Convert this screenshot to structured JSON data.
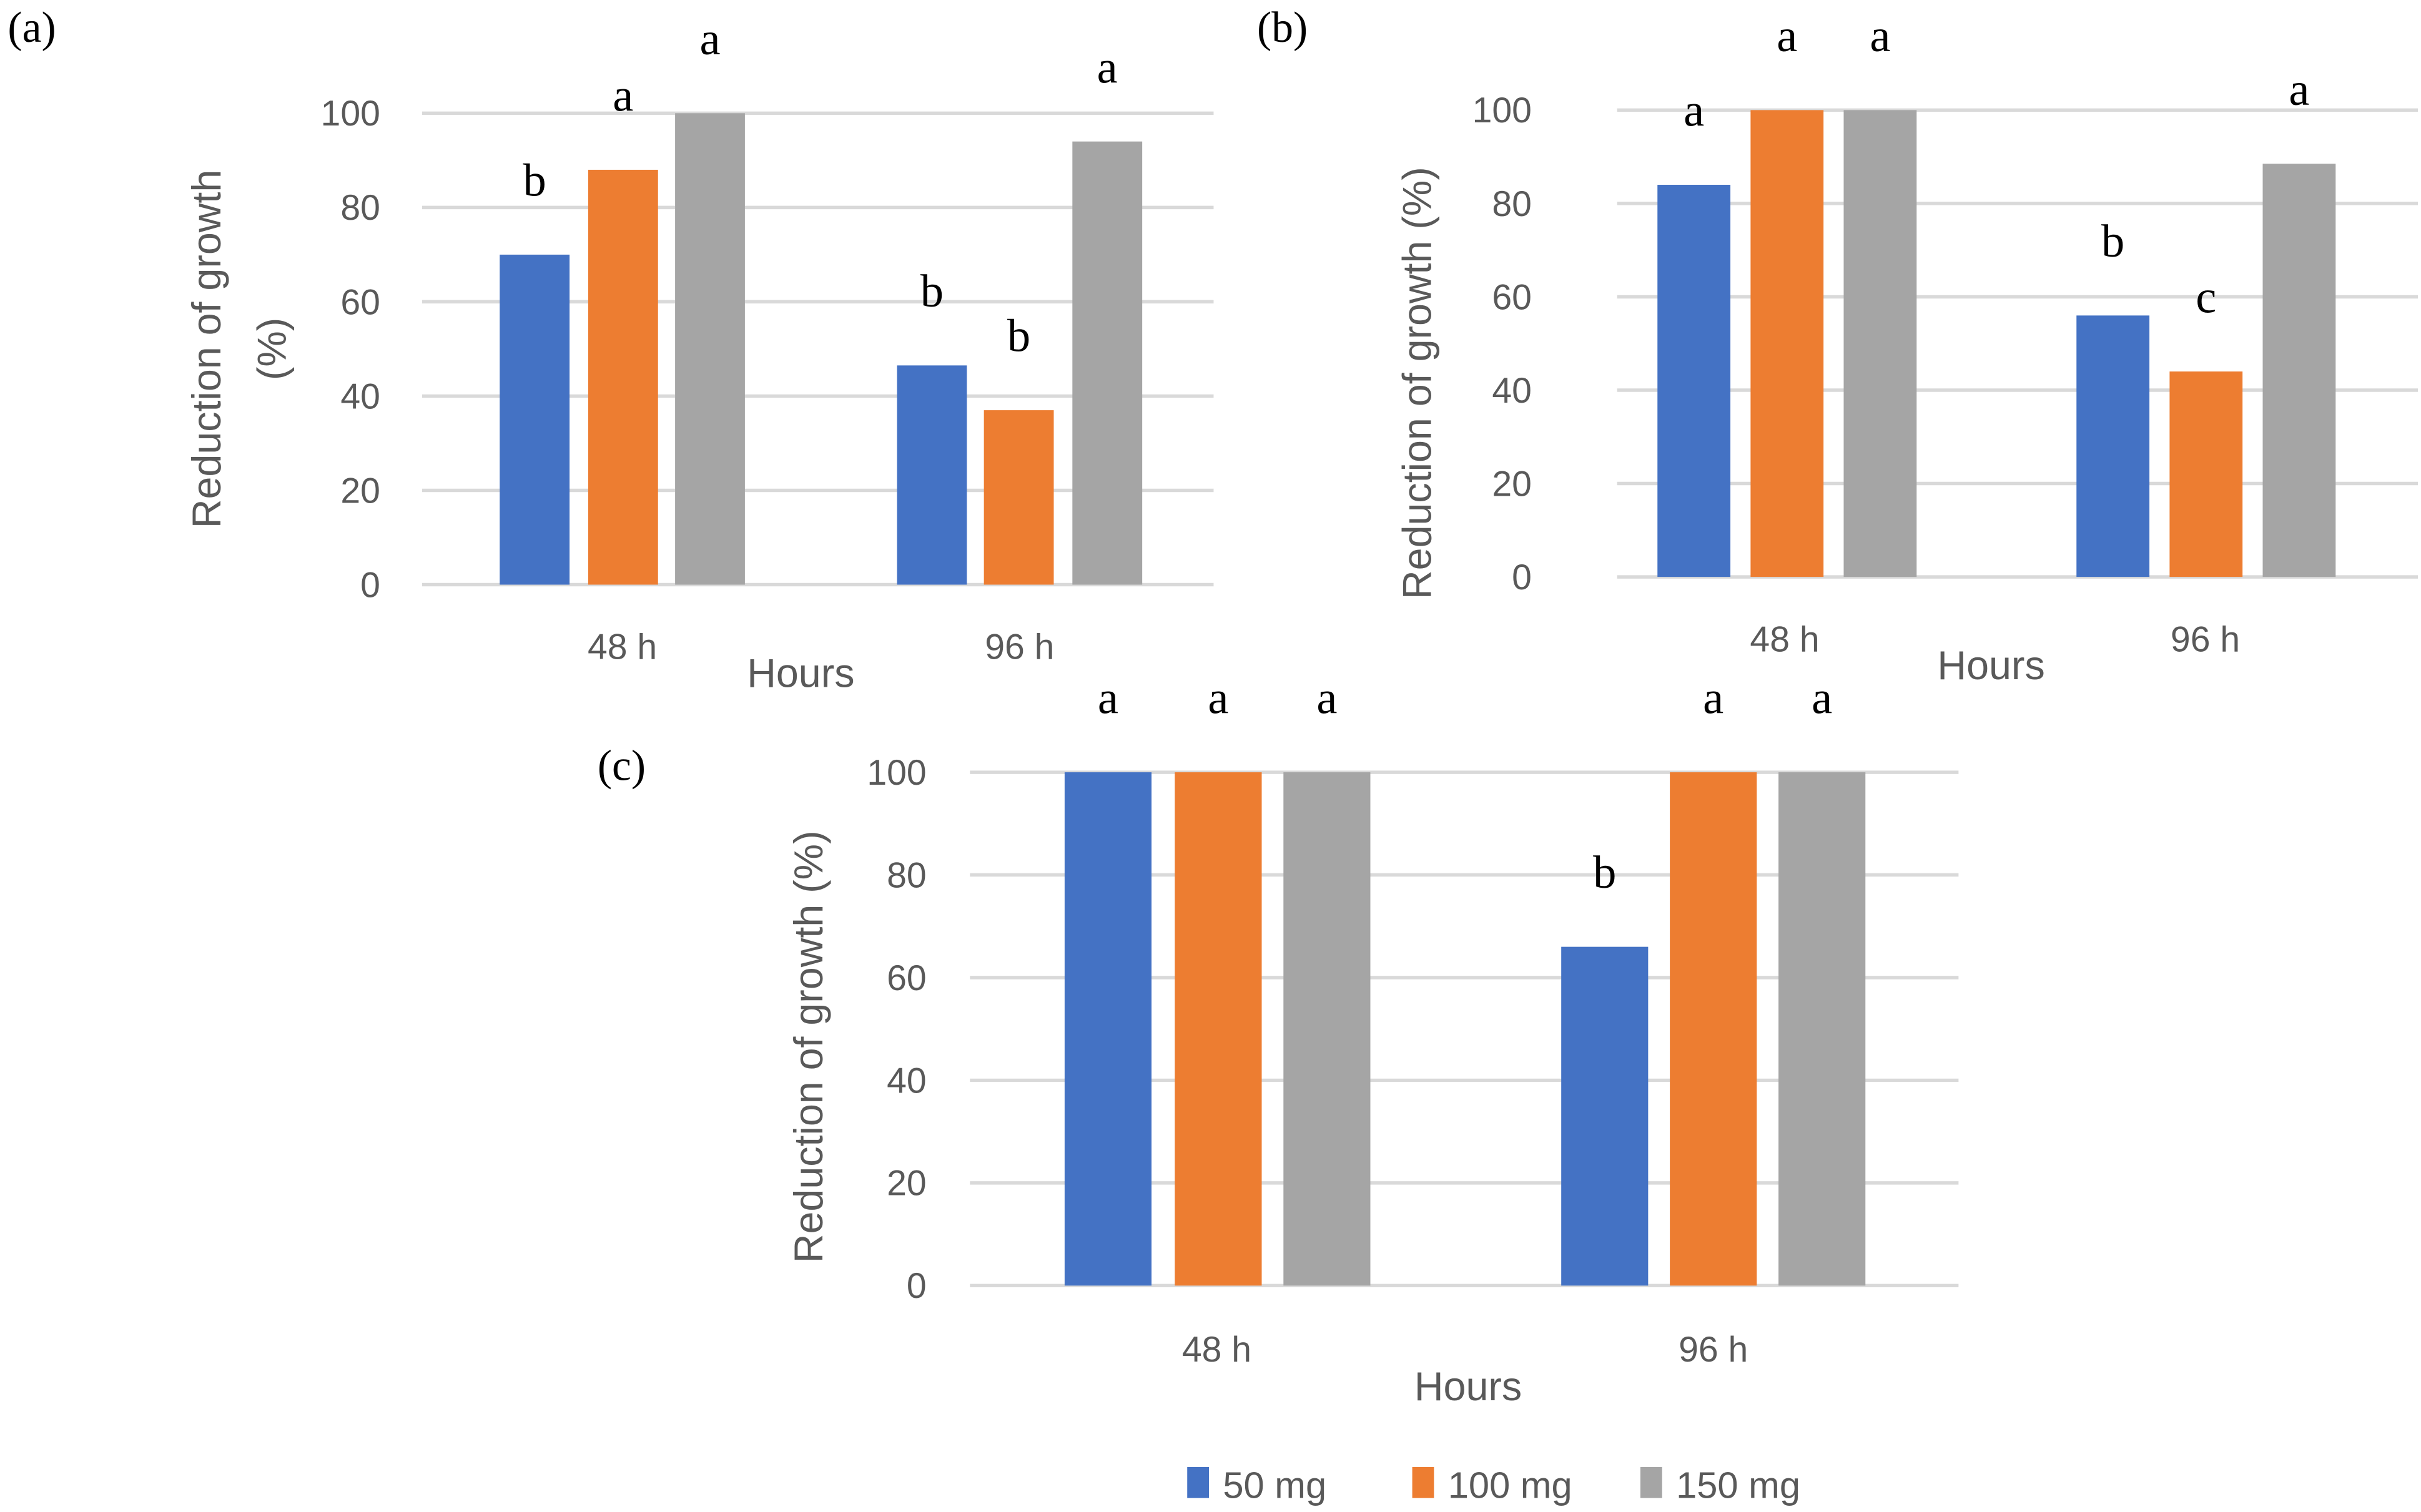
{
  "chart_data": [
    {
      "panel": "(a)",
      "type": "bar",
      "categories": [
        "48 h",
        "96 h"
      ],
      "xlabel": "Hours",
      "ylabel": [
        "Reduction of growth",
        "(%)"
      ],
      "ylim": [
        0,
        100
      ],
      "yticks": [
        0,
        20,
        40,
        60,
        80,
        100
      ],
      "grid": true,
      "series": [
        {
          "name": "50 mg",
          "values": [
            70,
            46.5
          ],
          "letters": [
            "b",
            "b"
          ]
        },
        {
          "name": "100 mg",
          "values": [
            88,
            37
          ],
          "letters": [
            "a",
            "b"
          ]
        },
        {
          "name": "150 mg",
          "values": [
            100,
            94
          ],
          "letters": [
            "a",
            "a"
          ]
        }
      ]
    },
    {
      "panel": "(b)",
      "type": "bar",
      "categories": [
        "48 h",
        "96 h"
      ],
      "xlabel": "Hours",
      "ylabel": [
        "Reduction of growth (%)"
      ],
      "ylim": [
        0,
        100
      ],
      "yticks": [
        0,
        20,
        40,
        60,
        80,
        100
      ],
      "grid": true,
      "series": [
        {
          "name": "50 mg",
          "values": [
            84,
            56
          ],
          "letters": [
            "a",
            "b"
          ]
        },
        {
          "name": "100 mg",
          "values": [
            100,
            44
          ],
          "letters": [
            "a",
            "c"
          ]
        },
        {
          "name": "150 mg",
          "values": [
            100,
            88.5
          ],
          "letters": [
            "a",
            "a"
          ]
        }
      ]
    },
    {
      "panel": "(c)",
      "type": "bar",
      "categories": [
        "48 h",
        "96 h"
      ],
      "xlabel": "Hours",
      "ylabel": [
        "Reduction of growth (%)"
      ],
      "ylim": [
        0,
        100
      ],
      "yticks": [
        0,
        20,
        40,
        60,
        80,
        100
      ],
      "grid": true,
      "series": [
        {
          "name": "50 mg",
          "values": [
            100,
            66
          ],
          "letters": [
            "a",
            "b"
          ]
        },
        {
          "name": "100 mg",
          "values": [
            100,
            100
          ],
          "letters": [
            "a",
            "a"
          ]
        },
        {
          "name": "150 mg",
          "values": [
            100,
            100
          ],
          "letters": [
            "a",
            "a"
          ]
        }
      ]
    }
  ],
  "legend": {
    "placement": "bottom",
    "items": [
      {
        "label": "50 mg",
        "color": "#4472C4"
      },
      {
        "label": "100 mg",
        "color": "#ED7D31"
      },
      {
        "label": "150 mg",
        "color": "#A5A5A5"
      }
    ]
  },
  "colors": {
    "grid": "#D9D9D9",
    "text": "#595959"
  }
}
